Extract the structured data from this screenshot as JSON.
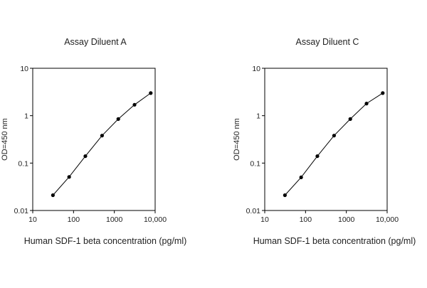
{
  "chart_data": [
    {
      "type": "line",
      "title": "Assay Diluent A",
      "xlabel": "Human SDF-1 beta concentration (pg/ml)",
      "ylabel": "OD=450 nm",
      "xscale": "log",
      "yscale": "log",
      "xlim": [
        10,
        10000
      ],
      "ylim": [
        0.01,
        10
      ],
      "xticks": [
        "10",
        "100",
        "1000",
        "10,000"
      ],
      "yticks": [
        "0.01",
        "0.1",
        "1",
        "10"
      ],
      "grid": false,
      "legend": "none",
      "line_color": "#000000",
      "series": [
        {
          "x": [
            31.25,
            78,
            195,
            500,
            1250,
            3125,
            7800
          ],
          "y": [
            0.021,
            0.051,
            0.14,
            0.38,
            0.85,
            1.7,
            3.0
          ]
        }
      ]
    },
    {
      "type": "line",
      "title": "Assay Diluent C",
      "xlabel": "Human SDF-1 beta concentration (pg/ml)",
      "ylabel": "OD=450 nm",
      "xscale": "log",
      "yscale": "log",
      "xlim": [
        10,
        10000
      ],
      "ylim": [
        0.01,
        10
      ],
      "xticks": [
        "10",
        "100",
        "1000",
        "10,000"
      ],
      "yticks": [
        "0.01",
        "0.1",
        "1",
        "10"
      ],
      "grid": false,
      "legend": "none",
      "line_color": "#000000",
      "series": [
        {
          "x": [
            31.25,
            78,
            195,
            500,
            1250,
            3125,
            7800
          ],
          "y": [
            0.021,
            0.05,
            0.14,
            0.38,
            0.85,
            1.8,
            3.0
          ]
        }
      ]
    }
  ]
}
